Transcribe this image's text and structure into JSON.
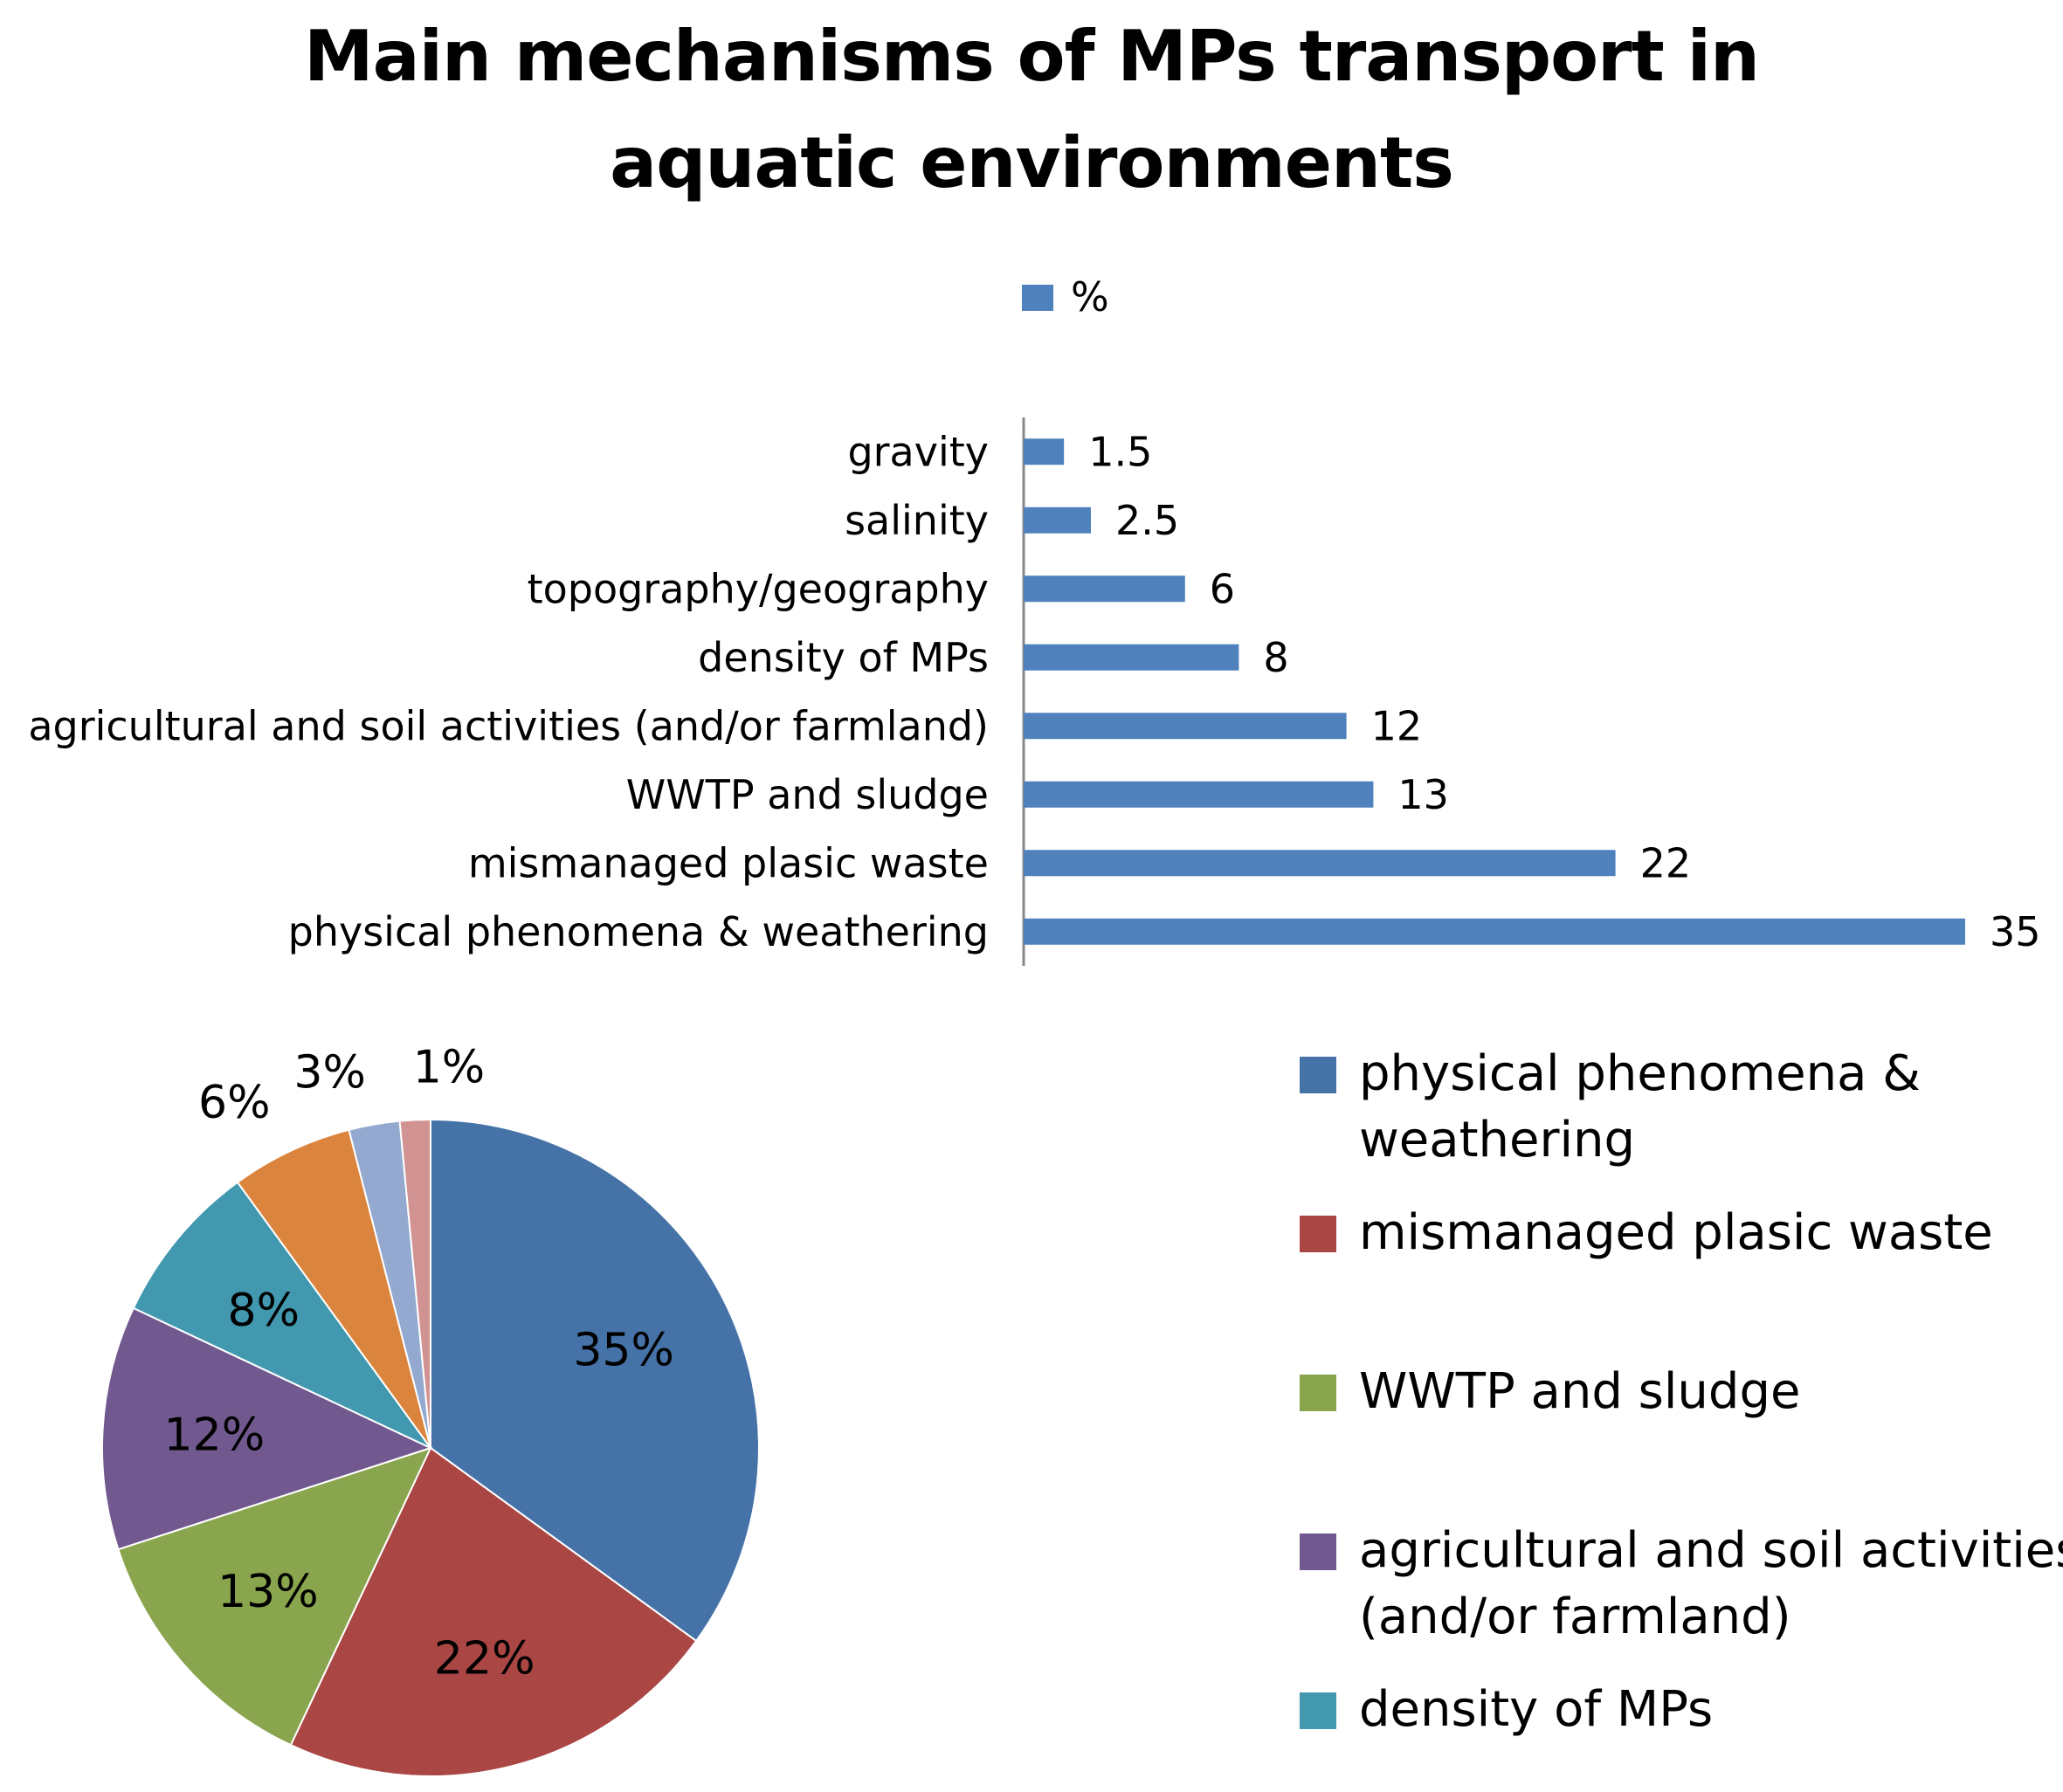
{
  "chart_data": [
    {
      "type": "bar",
      "orientation": "horizontal",
      "title": "Main mechanisms of MPs transport in aquatic environments",
      "title_lines": [
        "Main mechanisms of MPs transport in",
        "aquatic environments"
      ],
      "legend": {
        "position": "top",
        "entries": [
          "%"
        ]
      },
      "categories": [
        "gravity",
        "salinity",
        "topography/geography",
        "density of MPs",
        "agricultural and soil activities (and/or farmland)",
        "WWTP and sludge",
        "mismanaged plasic waste",
        "physical phenomena & weathering"
      ],
      "series": [
        {
          "name": "%",
          "values": [
            1.5,
            2.5,
            6,
            8,
            12,
            13,
            22,
            35
          ],
          "color": "#4F81BD"
        }
      ],
      "value_labels": [
        "1.5",
        "2.5",
        "6",
        "8",
        "12",
        "13",
        "22",
        "35"
      ],
      "xlim": [
        0,
        35
      ],
      "grid": false
    },
    {
      "type": "pie",
      "slices": [
        {
          "label": "physical phenomena & weathering",
          "value": 35,
          "data_label": "35%",
          "color": "#4572A7"
        },
        {
          "label": "mismanaged plasic waste",
          "value": 22,
          "data_label": "22%",
          "color": "#AA4643"
        },
        {
          "label": "WWTP and sludge",
          "value": 13,
          "data_label": "13%",
          "color": "#89A54E"
        },
        {
          "label": "agricultural and soil activities (and/or farmland)",
          "value": 12,
          "data_label": "12%",
          "color": "#71588F"
        },
        {
          "label": "density of MPs",
          "value": 8,
          "data_label": "8%",
          "color": "#4198AF"
        },
        {
          "label": "topography/geography",
          "value": 6,
          "data_label": "6%",
          "color": "#DB843D"
        },
        {
          "label": "salinity",
          "value": 2.5,
          "data_label": "3%",
          "color": "#93A9CF"
        },
        {
          "label": "gravity",
          "value": 1.5,
          "data_label": "1%",
          "color": "#D19392"
        }
      ],
      "legend": {
        "position": "right",
        "entries": [
          {
            "lines": [
              "physical phenomena &",
              "weathering"
            ],
            "color": "#4572A7"
          },
          {
            "lines": [
              "mismanaged plasic waste"
            ],
            "color": "#AA4643"
          },
          {
            "lines": [
              "WWTP and sludge"
            ],
            "color": "#89A54E"
          },
          {
            "lines": [
              "agricultural and soil activities",
              "(and/or farmland)"
            ],
            "color": "#71588F"
          },
          {
            "lines": [
              "density of MPs"
            ],
            "color": "#4198AF"
          }
        ]
      }
    }
  ]
}
